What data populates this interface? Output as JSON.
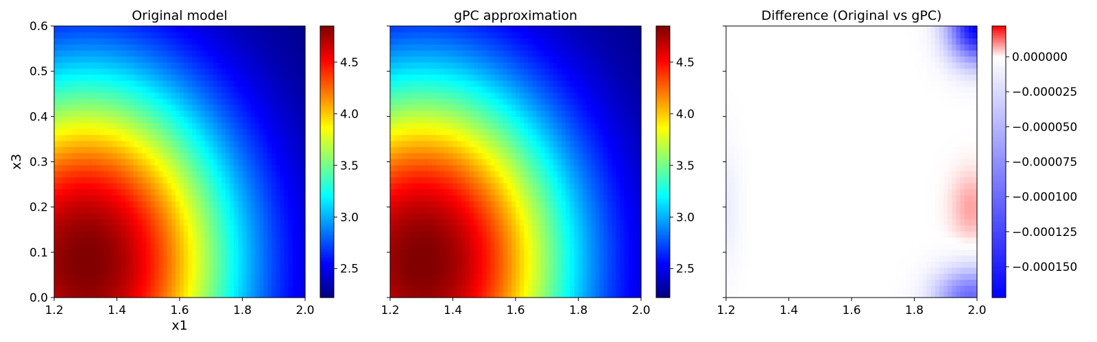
{
  "chart_data": [
    {
      "type": "heatmap",
      "title": "Original model",
      "xlabel": "x1",
      "ylabel": "x3",
      "xlim": [
        1.2,
        2.0
      ],
      "ylim": [
        0.0,
        0.6
      ],
      "xticks": [
        1.2,
        1.4,
        1.6,
        1.8,
        2.0
      ],
      "xtick_labels": [
        "1.2",
        "1.4",
        "1.6",
        "1.8",
        "2.0"
      ],
      "yticks": [
        0.0,
        0.1,
        0.2,
        0.3,
        0.4,
        0.5,
        0.6
      ],
      "ytick_labels": [
        "0.0",
        "0.1",
        "0.2",
        "0.3",
        "0.4",
        "0.5",
        "0.6"
      ],
      "colormap": "jet",
      "colorbar": {
        "range": [
          2.22,
          4.85
        ],
        "ticks": [
          2.5,
          3.0,
          3.5,
          4.0,
          4.5
        ],
        "tick_labels": [
          "2.5",
          "3.0",
          "3.5",
          "4.0",
          "4.5"
        ]
      },
      "value_range": [
        2.22,
        4.85
      ]
    },
    {
      "type": "heatmap",
      "title": "gPC approximation",
      "xlabel": "",
      "ylabel": "",
      "xlim": [
        1.2,
        2.0
      ],
      "ylim": [
        0.0,
        0.6
      ],
      "xticks": [
        1.2,
        1.4,
        1.6,
        1.8,
        2.0
      ],
      "xtick_labels": [
        "1.2",
        "1.4",
        "1.6",
        "1.8",
        "2.0"
      ],
      "yticks": [
        0.0,
        0.1,
        0.2,
        0.3,
        0.4,
        0.5,
        0.6
      ],
      "ytick_labels": [],
      "colormap": "jet",
      "colorbar": {
        "range": [
          2.22,
          4.85
        ],
        "ticks": [
          2.5,
          3.0,
          3.5,
          4.0,
          4.5
        ],
        "tick_labels": [
          "2.5",
          "3.0",
          "3.5",
          "4.0",
          "4.5"
        ]
      },
      "value_range": [
        2.22,
        4.85
      ]
    },
    {
      "type": "heatmap",
      "title": "Difference (Original vs gPC)",
      "xlabel": "",
      "ylabel": "",
      "xlim": [
        1.2,
        2.0
      ],
      "ylim": [
        0.0,
        0.6
      ],
      "xticks": [
        1.2,
        1.4,
        1.6,
        1.8,
        2.0
      ],
      "xtick_labels": [
        "1.2",
        "1.4",
        "1.6",
        "1.8",
        "2.0"
      ],
      "yticks": [
        0.0,
        0.1,
        0.2,
        0.3,
        0.4,
        0.5,
        0.6
      ],
      "ytick_labels": [],
      "colormap": "bwr",
      "colorbar": {
        "range": [
          -0.000172,
          2.2e-05
        ],
        "ticks": [
          0.0,
          -2.5e-05,
          -5e-05,
          -7.5e-05,
          -0.0001,
          -0.000125,
          -0.00015
        ],
        "tick_labels": [
          "0.000000",
          "−0.000025",
          "−0.000050",
          "−0.000075",
          "−0.000100",
          "−0.000125",
          "−0.000150"
        ]
      },
      "value_range": [
        -0.000172,
        2.2e-05
      ]
    }
  ]
}
